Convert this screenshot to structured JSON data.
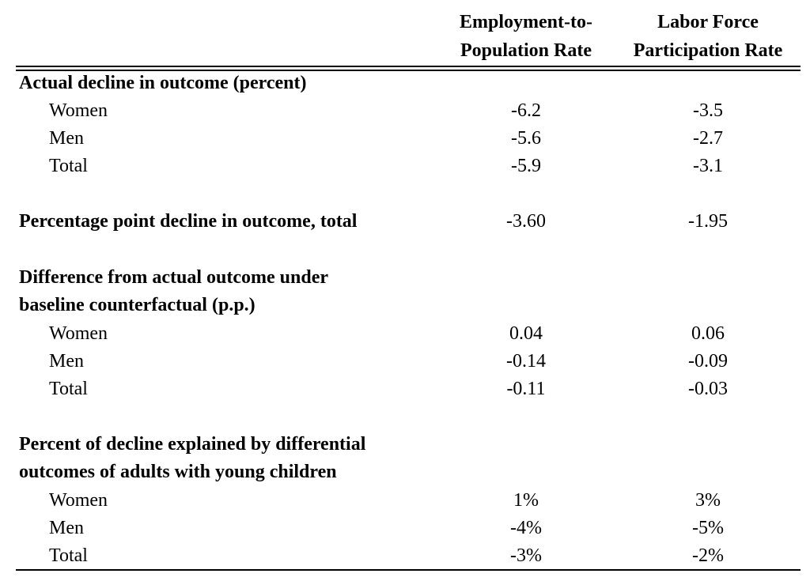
{
  "header": {
    "col1_line1": "Employment-to-",
    "col1_line2": "Population Rate",
    "col2_line1": "Labor Force",
    "col2_line2": "Participation Rate"
  },
  "sections": [
    {
      "title_lines": [
        "Actual decline in outcome (percent)"
      ],
      "rows": [
        {
          "label": "Women",
          "v1": "-6.2",
          "v2": "-3.5"
        },
        {
          "label": "Men",
          "v1": "-5.6",
          "v2": "-2.7"
        },
        {
          "label": "Total",
          "v1": "-5.9",
          "v2": "-3.1"
        }
      ]
    },
    {
      "title_lines": [
        "Percentage point decline in outcome, total"
      ],
      "title_values": {
        "v1": "-3.60",
        "v2": "-1.95"
      },
      "rows": []
    },
    {
      "title_lines": [
        "Difference from actual outcome under",
        "baseline counterfactual (p.p.)"
      ],
      "rows": [
        {
          "label": "Women",
          "v1": "0.04",
          "v2": "0.06"
        },
        {
          "label": "Men",
          "v1": "-0.14",
          "v2": "-0.09"
        },
        {
          "label": "Total",
          "v1": "-0.11",
          "v2": "-0.03"
        }
      ]
    },
    {
      "title_lines": [
        "Percent of decline explained by differential",
        "outcomes of adults with young children"
      ],
      "rows": [
        {
          "label": "Women",
          "v1": "1%",
          "v2": "3%"
        },
        {
          "label": "Men",
          "v1": "-4%",
          "v2": "-5%"
        },
        {
          "label": "Total",
          "v1": "-3%",
          "v2": "-2%"
        }
      ]
    }
  ]
}
